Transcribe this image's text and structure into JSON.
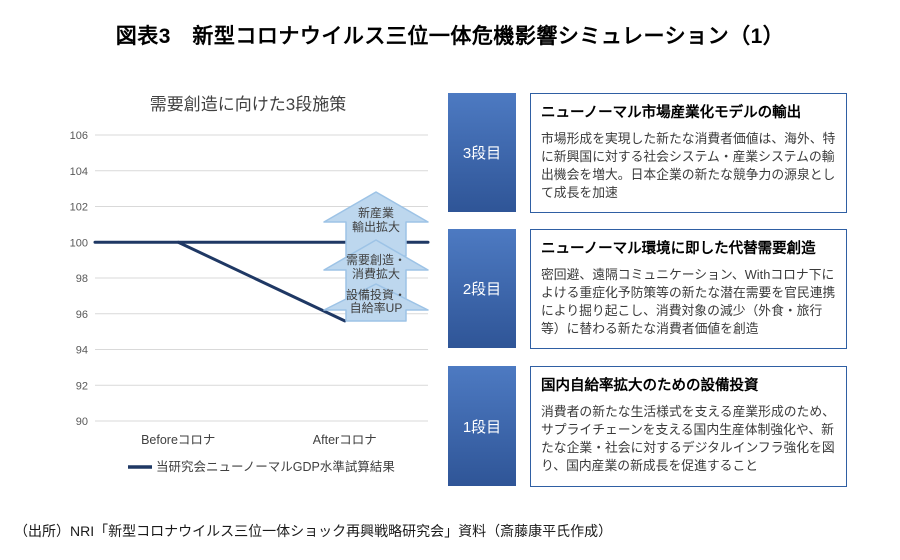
{
  "page": {
    "title": "図表3　新型コロナウイルス三位一体危機影響シミュレーション（1）",
    "source": "（出所）NRI「新型コロナウイルス三位一体ショック再興戦略研究会」資料（斎藤康平氏作成）"
  },
  "chart_data": {
    "type": "line",
    "title": "需要創造に向けた3段施策",
    "categories": [
      "Beforeコロナ",
      "Afterコロナ"
    ],
    "ylim": [
      90,
      106
    ],
    "yticks": [
      106,
      104,
      102,
      100,
      98,
      96,
      94,
      92,
      90
    ],
    "grid": true,
    "legend_position": "bottom",
    "legend": [
      {
        "label": "当研究会ニューノーマルGDP水準試算結果",
        "color": "#1f3864"
      }
    ],
    "series": [
      {
        "id": "baseline-100",
        "x_frac": [
          0,
          1
        ],
        "values": [
          100,
          100
        ],
        "color": "#1f3864"
      },
      {
        "id": "new-normal-gdp-estimate",
        "x_frac": [
          0.25,
          0.75
        ],
        "values": [
          100,
          95.6
        ],
        "color": "#1f3864"
      }
    ]
  },
  "arrows": [
    {
      "lines": [
        "新産業",
        "輸出拡大"
      ]
    },
    {
      "lines": [
        "需要創造・",
        "消費拡大"
      ]
    },
    {
      "lines": [
        "設備投資・",
        "自給率UP"
      ]
    }
  ],
  "stages": [
    {
      "label": "3段目",
      "heading": "ニューノーマル市場産業化モデルの輸出",
      "body": "市場形成を実現した新たな消費者価値は、海外、特に新興国に対する社会システム・産業システムの輸出機会を増大。日本企業の新たな競争力の源泉として成長を加速"
    },
    {
      "label": "2段目",
      "heading": "ニューノーマル環境に即した代替需要創造",
      "body": "密回避、遠隔コミュニケーション、Withコロナ下によける重症化予防策等の新たな潜在需要を官民連携により掘り起こし、消費対象の減少（外食・旅行等）に替わる新たな消費者価値を創造"
    },
    {
      "label": "1段目",
      "heading": "国内自給率拡大のための設備投資",
      "body": "消費者の新たな生活様式を支える産業形成のため、サプライチェーンを支える国内生産体制強化や、新たな企業・社会に対するデジタルインフラ強化を図り、国内産業の新成長を促進すること"
    }
  ],
  "colors": {
    "line": "#1f3864",
    "arrow_fill": "#bdd7ee",
    "arrow_border": "#9dc3e6",
    "stage_box_top": "#4d7ac2",
    "stage_box_bottom": "#2f5597",
    "text_box_border": "#2f5fa3",
    "gridline": "#d9d9d9"
  }
}
